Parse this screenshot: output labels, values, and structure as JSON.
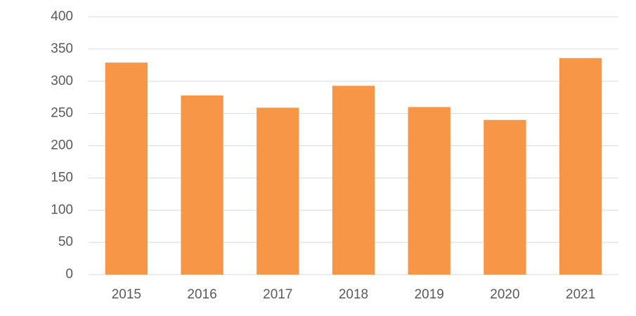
{
  "chart_data": {
    "type": "bar",
    "categories": [
      "2015",
      "2016",
      "2017",
      "2018",
      "2019",
      "2020",
      "2021"
    ],
    "values": [
      329,
      278,
      259,
      293,
      260,
      240,
      336
    ],
    "color": "#f79646",
    "ylim": [
      0,
      400
    ],
    "yticks": [
      0,
      50,
      100,
      150,
      200,
      250,
      300,
      350,
      400
    ],
    "grid": true
  }
}
